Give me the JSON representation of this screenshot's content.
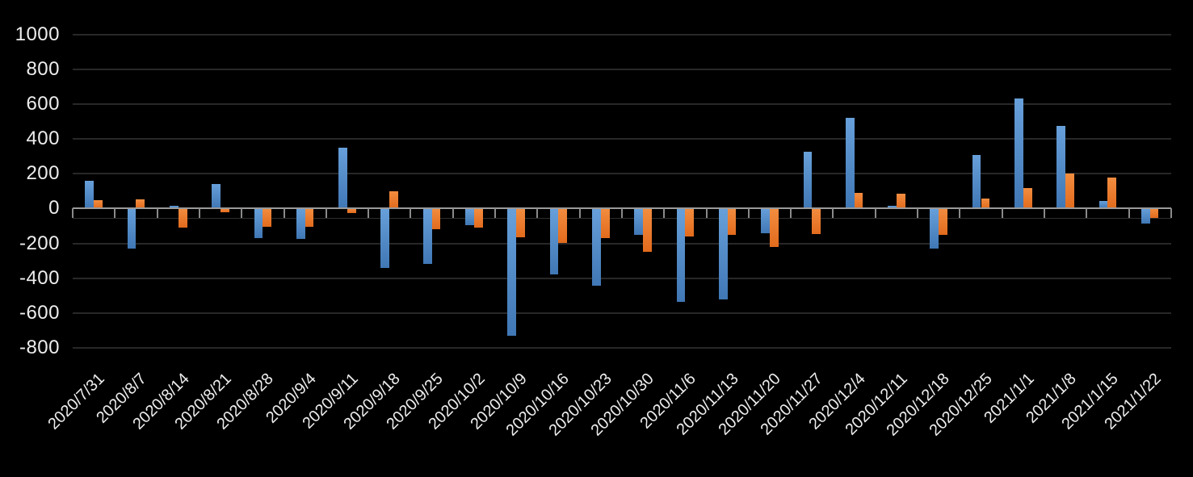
{
  "chart_data": {
    "type": "bar",
    "title": "",
    "xlabel": "",
    "ylabel": "",
    "legend_position": "none",
    "grid": "horizontal",
    "background_color": "#000000",
    "axis_color": "#9a9a9a",
    "gridline_color": "#282828",
    "text_color": "#ededed",
    "ylim": [
      -800,
      1000
    ],
    "ytick_step": 200,
    "yticks": [
      1000,
      800,
      600,
      400,
      200,
      0,
      -200,
      -400,
      -600,
      -800
    ],
    "ytick_labels": [
      "1000",
      "800",
      "600",
      "400",
      "200",
      "0",
      "-200",
      "-400",
      "-600",
      "-800"
    ],
    "categories": [
      "2020/7/31",
      "2020/8/7",
      "2020/8/14",
      "2020/8/21",
      "2020/8/28",
      "2020/9/4",
      "2020/9/11",
      "2020/9/18",
      "2020/9/25",
      "2020/10/2",
      "2020/10/9",
      "2020/10/16",
      "2020/10/23",
      "2020/10/30",
      "2020/11/6",
      "2020/11/13",
      "2020/11/20",
      "2020/11/27",
      "2020/12/4",
      "2020/12/11",
      "2020/12/18",
      "2020/12/25",
      "2021/1/1",
      "2021/1/8",
      "2021/1/15",
      "2021/1/22"
    ],
    "series": [
      {
        "name": "blue-series",
        "color": "#4e8ac9",
        "color_top": "#67a0da",
        "color_bottom": "#4077b5",
        "values": [
          160,
          -230,
          15,
          140,
          -170,
          -175,
          350,
          -340,
          -320,
          -95,
          -730,
          -380,
          -445,
          -150,
          -535,
          -525,
          -140,
          325,
          520,
          15,
          -230,
          310,
          635,
          475,
          45,
          -85
        ]
      },
      {
        "name": "orange-series",
        "color": "#ed7d31",
        "color_top": "#f28d40",
        "color_bottom": "#e26b1d",
        "values": [
          50,
          55,
          -110,
          -20,
          -105,
          -105,
          -25,
          100,
          -120,
          -110,
          -165,
          -200,
          -170,
          -250,
          -160,
          -150,
          -220,
          -145,
          90,
          85,
          -150,
          60,
          120,
          200,
          180,
          -55
        ]
      }
    ]
  }
}
